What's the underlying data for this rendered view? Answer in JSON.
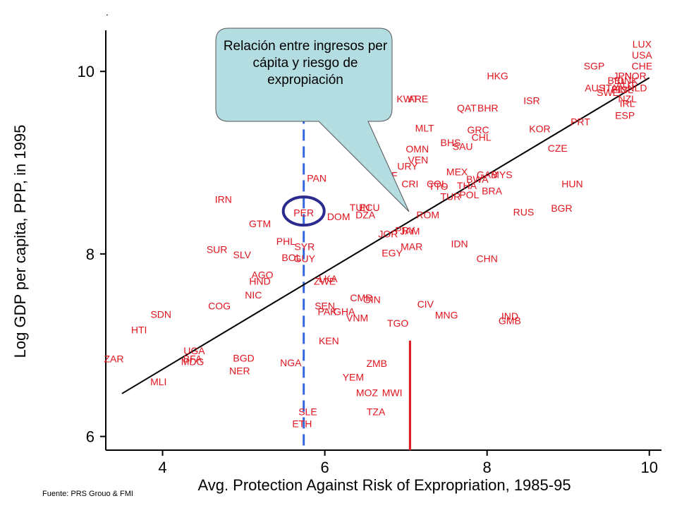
{
  "chart_data": {
    "type": "scatter",
    "title": "",
    "xlabel": "Avg. Protection Against Risk of Expropriation, 1985-95",
    "ylabel": "Log GDP per capita, PPP, in 1995",
    "xlim": [
      3.3,
      10.15
    ],
    "ylim": [
      5.85,
      10.45
    ],
    "xticks": [
      "4",
      "6",
      "8",
      "10"
    ],
    "yticks": [
      "6",
      "8",
      "10"
    ],
    "grid": false,
    "fit_line": {
      "x1": 3.5,
      "y1": 6.47,
      "x2": 10.0,
      "y2": 9.93
    },
    "vline_dashed": {
      "x": 5.74,
      "y_from": 5.85,
      "y_to": 9.55,
      "color": "#3366dd"
    },
    "vline_red": {
      "x": 7.05,
      "y_from": 5.85,
      "y_to": 7.05,
      "color": "#e0141e"
    },
    "highlight": {
      "label": "PER",
      "x": 5.74,
      "y": 8.47,
      "color": "#2b2b8f"
    },
    "marker_color": "#e0141e",
    "points": [
      {
        "label": "LUX",
        "x": 9.91,
        "y": 10.3
      },
      {
        "label": "USA",
        "x": 9.91,
        "y": 10.18
      },
      {
        "label": "CHE",
        "x": 9.91,
        "y": 10.06
      },
      {
        "label": "SGP",
        "x": 9.32,
        "y": 10.06
      },
      {
        "label": "HKG",
        "x": 8.13,
        "y": 9.95
      },
      {
        "label": "JPN",
        "x": 9.67,
        "y": 9.95
      },
      {
        "label": "NOR",
        "x": 9.83,
        "y": 9.95
      },
      {
        "label": "BEL",
        "x": 9.6,
        "y": 9.9
      },
      {
        "label": "DNK",
        "x": 9.73,
        "y": 9.9
      },
      {
        "label": "AUT",
        "x": 9.71,
        "y": 9.85
      },
      {
        "label": "ISL",
        "x": 9.71,
        "y": 9.8
      },
      {
        "label": "AUS",
        "x": 9.33,
        "y": 9.82
      },
      {
        "label": "ITA",
        "x": 9.52,
        "y": 9.82
      },
      {
        "label": "SWE",
        "x": 9.49,
        "y": 9.77
      },
      {
        "label": "FIN",
        "x": 9.63,
        "y": 9.8
      },
      {
        "label": "NLD",
        "x": 9.85,
        "y": 9.82
      },
      {
        "label": "NZL",
        "x": 9.73,
        "y": 9.7
      },
      {
        "label": "IRL",
        "x": 9.73,
        "y": 9.65
      },
      {
        "label": "KWT",
        "x": 7.02,
        "y": 9.7
      },
      {
        "label": "ARE",
        "x": 7.15,
        "y": 9.7
      },
      {
        "label": "ISR",
        "x": 8.55,
        "y": 9.68
      },
      {
        "label": "QAT",
        "x": 7.75,
        "y": 9.6
      },
      {
        "label": "BHR",
        "x": 8.01,
        "y": 9.6
      },
      {
        "label": "ESP",
        "x": 9.7,
        "y": 9.52
      },
      {
        "label": "PRT",
        "x": 9.15,
        "y": 9.45
      },
      {
        "label": "MLT",
        "x": 7.23,
        "y": 9.38
      },
      {
        "label": "GRC",
        "x": 7.89,
        "y": 9.36
      },
      {
        "label": "KOR",
        "x": 8.65,
        "y": 9.37
      },
      {
        "label": "CHL",
        "x": 7.93,
        "y": 9.28
      },
      {
        "label": "BHS",
        "x": 7.55,
        "y": 9.22
      },
      {
        "label": "SAU",
        "x": 7.7,
        "y": 9.18
      },
      {
        "label": "OMN",
        "x": 7.14,
        "y": 9.15
      },
      {
        "label": "CZE",
        "x": 8.87,
        "y": 9.16
      },
      {
        "label": "VEN",
        "x": 7.15,
        "y": 9.03
      },
      {
        "label": "URY",
        "x": 7.02,
        "y": 8.96
      },
      {
        "label": "ZAF",
        "x": 6.78,
        "y": 8.86
      },
      {
        "label": "MEX",
        "x": 7.63,
        "y": 8.9
      },
      {
        "label": "GAB",
        "x": 8.0,
        "y": 8.87
      },
      {
        "label": "MYS",
        "x": 8.18,
        "y": 8.87
      },
      {
        "label": "BWA",
        "x": 7.88,
        "y": 8.82
      },
      {
        "label": "PAN",
        "x": 5.9,
        "y": 8.83
      },
      {
        "label": "CRI",
        "x": 7.05,
        "y": 8.77
      },
      {
        "label": "COL",
        "x": 7.38,
        "y": 8.77
      },
      {
        "label": "HUN",
        "x": 9.05,
        "y": 8.77
      },
      {
        "label": "THA",
        "x": 7.75,
        "y": 8.75
      },
      {
        "label": "BRA",
        "x": 8.06,
        "y": 8.69
      },
      {
        "label": "TTO",
        "x": 7.4,
        "y": 8.74
      },
      {
        "label": "POL",
        "x": 7.78,
        "y": 8.65
      },
      {
        "label": "TUR",
        "x": 7.55,
        "y": 8.63
      },
      {
        "label": "IRN",
        "x": 4.75,
        "y": 8.6
      },
      {
        "label": "BGR",
        "x": 8.92,
        "y": 8.5
      },
      {
        "label": "TUN",
        "x": 6.43,
        "y": 8.51
      },
      {
        "label": "ECU",
        "x": 6.55,
        "y": 8.51
      },
      {
        "label": "RUS",
        "x": 8.45,
        "y": 8.46
      },
      {
        "label": "ROM",
        "x": 7.27,
        "y": 8.43
      },
      {
        "label": "DZA",
        "x": 6.5,
        "y": 8.43
      },
      {
        "label": "PER",
        "x": 5.74,
        "y": 8.45
      },
      {
        "label": "DOM",
        "x": 6.17,
        "y": 8.41
      },
      {
        "label": "GTM",
        "x": 5.2,
        "y": 8.33
      },
      {
        "label": "JOR",
        "x": 6.78,
        "y": 8.22
      },
      {
        "label": "JAM",
        "x": 7.05,
        "y": 8.25
      },
      {
        "label": "PRY",
        "x": 6.99,
        "y": 8.26
      },
      {
        "label": "PHL",
        "x": 5.52,
        "y": 8.14
      },
      {
        "label": "IDN",
        "x": 7.66,
        "y": 8.11
      },
      {
        "label": "SYR",
        "x": 5.75,
        "y": 8.08
      },
      {
        "label": "MAR",
        "x": 7.07,
        "y": 8.08
      },
      {
        "label": "SUR",
        "x": 4.67,
        "y": 8.05
      },
      {
        "label": "SLV",
        "x": 4.98,
        "y": 7.99
      },
      {
        "label": "EGY",
        "x": 6.83,
        "y": 8.01
      },
      {
        "label": "BOL",
        "x": 5.59,
        "y": 7.96
      },
      {
        "label": "GUY",
        "x": 5.75,
        "y": 7.95
      },
      {
        "label": "CHN",
        "x": 8.0,
        "y": 7.95
      },
      {
        "label": "AGO",
        "x": 5.23,
        "y": 7.77
      },
      {
        "label": "LKA",
        "x": 6.04,
        "y": 7.73
      },
      {
        "label": "HND",
        "x": 5.2,
        "y": 7.7
      },
      {
        "label": "ZWE",
        "x": 6.0,
        "y": 7.7
      },
      {
        "label": "NIC",
        "x": 5.12,
        "y": 7.55
      },
      {
        "label": "CMR",
        "x": 6.45,
        "y": 7.52
      },
      {
        "label": "GIN",
        "x": 6.58,
        "y": 7.5
      },
      {
        "label": "CIV",
        "x": 7.24,
        "y": 7.45
      },
      {
        "label": "COG",
        "x": 4.7,
        "y": 7.43
      },
      {
        "label": "SEN",
        "x": 6.0,
        "y": 7.43
      },
      {
        "label": "PAK",
        "x": 6.03,
        "y": 7.37
      },
      {
        "label": "GHA",
        "x": 6.24,
        "y": 7.37
      },
      {
        "label": "SDN",
        "x": 3.98,
        "y": 7.34
      },
      {
        "label": "IND",
        "x": 8.28,
        "y": 7.32
      },
      {
        "label": "MNG",
        "x": 7.5,
        "y": 7.33
      },
      {
        "label": "VNM",
        "x": 6.4,
        "y": 7.3
      },
      {
        "label": "GMB",
        "x": 8.28,
        "y": 7.27
      },
      {
        "label": "TGO",
        "x": 6.9,
        "y": 7.24
      },
      {
        "label": "HTI",
        "x": 3.71,
        "y": 7.17
      },
      {
        "label": "KEN",
        "x": 6.05,
        "y": 7.05
      },
      {
        "label": "UGA",
        "x": 4.39,
        "y": 6.94
      },
      {
        "label": "ZAR",
        "x": 3.4,
        "y": 6.85
      },
      {
        "label": "BFA",
        "x": 4.37,
        "y": 6.85
      },
      {
        "label": "BGD",
        "x": 5.0,
        "y": 6.86
      },
      {
        "label": "MDG",
        "x": 4.37,
        "y": 6.82
      },
      {
        "label": "NGA",
        "x": 5.58,
        "y": 6.81
      },
      {
        "label": "ZMB",
        "x": 6.64,
        "y": 6.8
      },
      {
        "label": "NER",
        "x": 4.95,
        "y": 6.72
      },
      {
        "label": "YEM",
        "x": 6.35,
        "y": 6.65
      },
      {
        "label": "MLI",
        "x": 3.95,
        "y": 6.6
      },
      {
        "label": "MOZ",
        "x": 6.52,
        "y": 6.48
      },
      {
        "label": "MWI",
        "x": 6.83,
        "y": 6.48
      },
      {
        "label": "SLE",
        "x": 5.79,
        "y": 6.27
      },
      {
        "label": "TZA",
        "x": 6.63,
        "y": 6.27
      },
      {
        "label": "ETH",
        "x": 5.72,
        "y": 6.14
      }
    ]
  },
  "callout": {
    "text": "Relación entre ingresos per cápita y riesgo de expropiación",
    "fill": "#b4dde2",
    "stroke": "#555555"
  },
  "source": "Fuente: PRS Grouo & FMI",
  "stray_mark": "."
}
